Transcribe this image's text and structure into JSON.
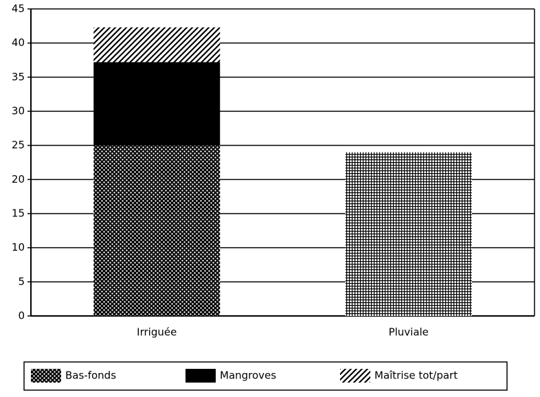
{
  "chart_data": {
    "type": "stacked_bar",
    "categories": [
      "Irriguée",
      "Pluviale"
    ],
    "series": [
      {
        "name": "Bas-fonds",
        "values": [
          25,
          null
        ]
      },
      {
        "name": "Mangroves",
        "values": [
          12.2,
          null
        ]
      },
      {
        "name": "Maîtrise tot/part",
        "values": [
          5.1,
          null
        ]
      },
      {
        "values": [
          null,
          24
        ]
      }
    ],
    "ylim": [
      0,
      45
    ],
    "yticks": [
      0,
      5,
      10,
      15,
      20,
      25,
      30,
      35,
      40,
      45
    ],
    "grid": true,
    "legend": "bottom"
  }
}
